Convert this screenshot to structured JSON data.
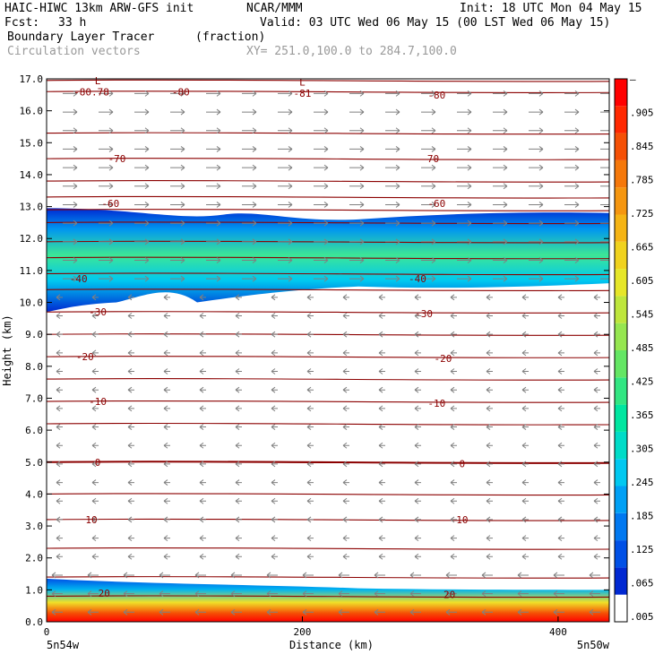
{
  "header": {
    "model": "HAIC-HIWC 13km ARW-GFS init",
    "org": "NCAR/MMM",
    "init": "Init: 18 UTC Mon 04 May 15",
    "fcst_label": "Fcst:",
    "fcst_value": "33 h",
    "valid": "Valid: 03 UTC Wed 06 May 15 (00 LST Wed 06 May 15)",
    "field": "Boundary Layer Tracer",
    "units": "(fraction)",
    "vectors": "Circulation vectors",
    "xy": "XY= 251.0,100.0 to 284.7,100.0"
  },
  "colors": {
    "contour": "#8b0000",
    "vector": "#808080",
    "scale": [
      "#ffffff",
      "#0028d2",
      "#0050e6",
      "#0078f0",
      "#00a0f5",
      "#00c8f0",
      "#00dcc8",
      "#00e6a0",
      "#32e682",
      "#64e664",
      "#96e650",
      "#bee63c",
      "#e6e628",
      "#f0d21e",
      "#f5b414",
      "#f5960f",
      "#f5780a",
      "#f55005",
      "#ff2800",
      "#ff0000"
    ]
  },
  "chart_data": {
    "type": "heatmap",
    "xlabel": "Distance (km)",
    "ylabel": "Height (km)",
    "xlim": [
      0,
      440
    ],
    "ylim": [
      0,
      17
    ],
    "xticks": [
      "0",
      "200",
      "400"
    ],
    "yticks": [
      "0.0",
      "1.0",
      "2.0",
      "3.0",
      "4.0",
      "5.0",
      "6.0",
      "7.0",
      "8.0",
      "9.0",
      "10.0",
      "11.0",
      "12.0",
      "13.0",
      "14.0",
      "15.0",
      "16.0",
      "17.0"
    ],
    "x_endpoints": [
      "5n54w",
      "5n50w"
    ],
    "colorbar_labels": [
      ".005",
      ".065",
      ".125",
      ".185",
      ".245",
      ".305",
      ".365",
      ".425",
      ".485",
      ".545",
      ".605",
      ".665",
      ".725",
      ".785",
      ".845",
      ".905",
      "–"
    ],
    "contour_labels": [
      {
        "text": "-80.78",
        "x": 35,
        "y": 16.6
      },
      {
        "text": "L",
        "x": 40,
        "y": 16.95
      },
      {
        "text": "-80",
        "x": 105,
        "y": 16.6
      },
      {
        "text": "L",
        "x": 200,
        "y": 16.9
      },
      {
        "text": "-81",
        "x": 200,
        "y": 16.55
      },
      {
        "text": "-80",
        "x": 305,
        "y": 16.5
      },
      {
        "text": "-70",
        "x": 55,
        "y": 14.5
      },
      {
        "text": "-70",
        "x": 300,
        "y": 14.5
      },
      {
        "text": "-60",
        "x": 50,
        "y": 13.1
      },
      {
        "text": "-60",
        "x": 305,
        "y": 13.1
      },
      {
        "text": "-40",
        "x": 25,
        "y": 10.75
      },
      {
        "text": "-40",
        "x": 290,
        "y": 10.75
      },
      {
        "text": "-30",
        "x": 40,
        "y": 9.7
      },
      {
        "text": "-30",
        "x": 295,
        "y": 9.65
      },
      {
        "text": "-20",
        "x": 30,
        "y": 8.3
      },
      {
        "text": "-20",
        "x": 310,
        "y": 8.25
      },
      {
        "text": "-10",
        "x": 40,
        "y": 6.9
      },
      {
        "text": "-10",
        "x": 305,
        "y": 6.85
      },
      {
        "text": "0",
        "x": 40,
        "y": 5.0
      },
      {
        "text": "0",
        "x": 325,
        "y": 4.95
      },
      {
        "text": "10",
        "x": 35,
        "y": 3.2
      },
      {
        "text": "10",
        "x": 325,
        "y": 3.2
      },
      {
        "text": "20",
        "x": 45,
        "y": 0.9
      },
      {
        "text": "20",
        "x": 315,
        "y": 0.85
      }
    ],
    "contour_levels_km": [
      16.95,
      16.6,
      15.3,
      14.5,
      13.8,
      13.3,
      12.9,
      12.5,
      11.9,
      11.4,
      10.9,
      10.4,
      9.7,
      9.0,
      8.3,
      7.6,
      6.9,
      6.2,
      5.0,
      4.0,
      3.2,
      2.3,
      1.4,
      0.8
    ]
  }
}
